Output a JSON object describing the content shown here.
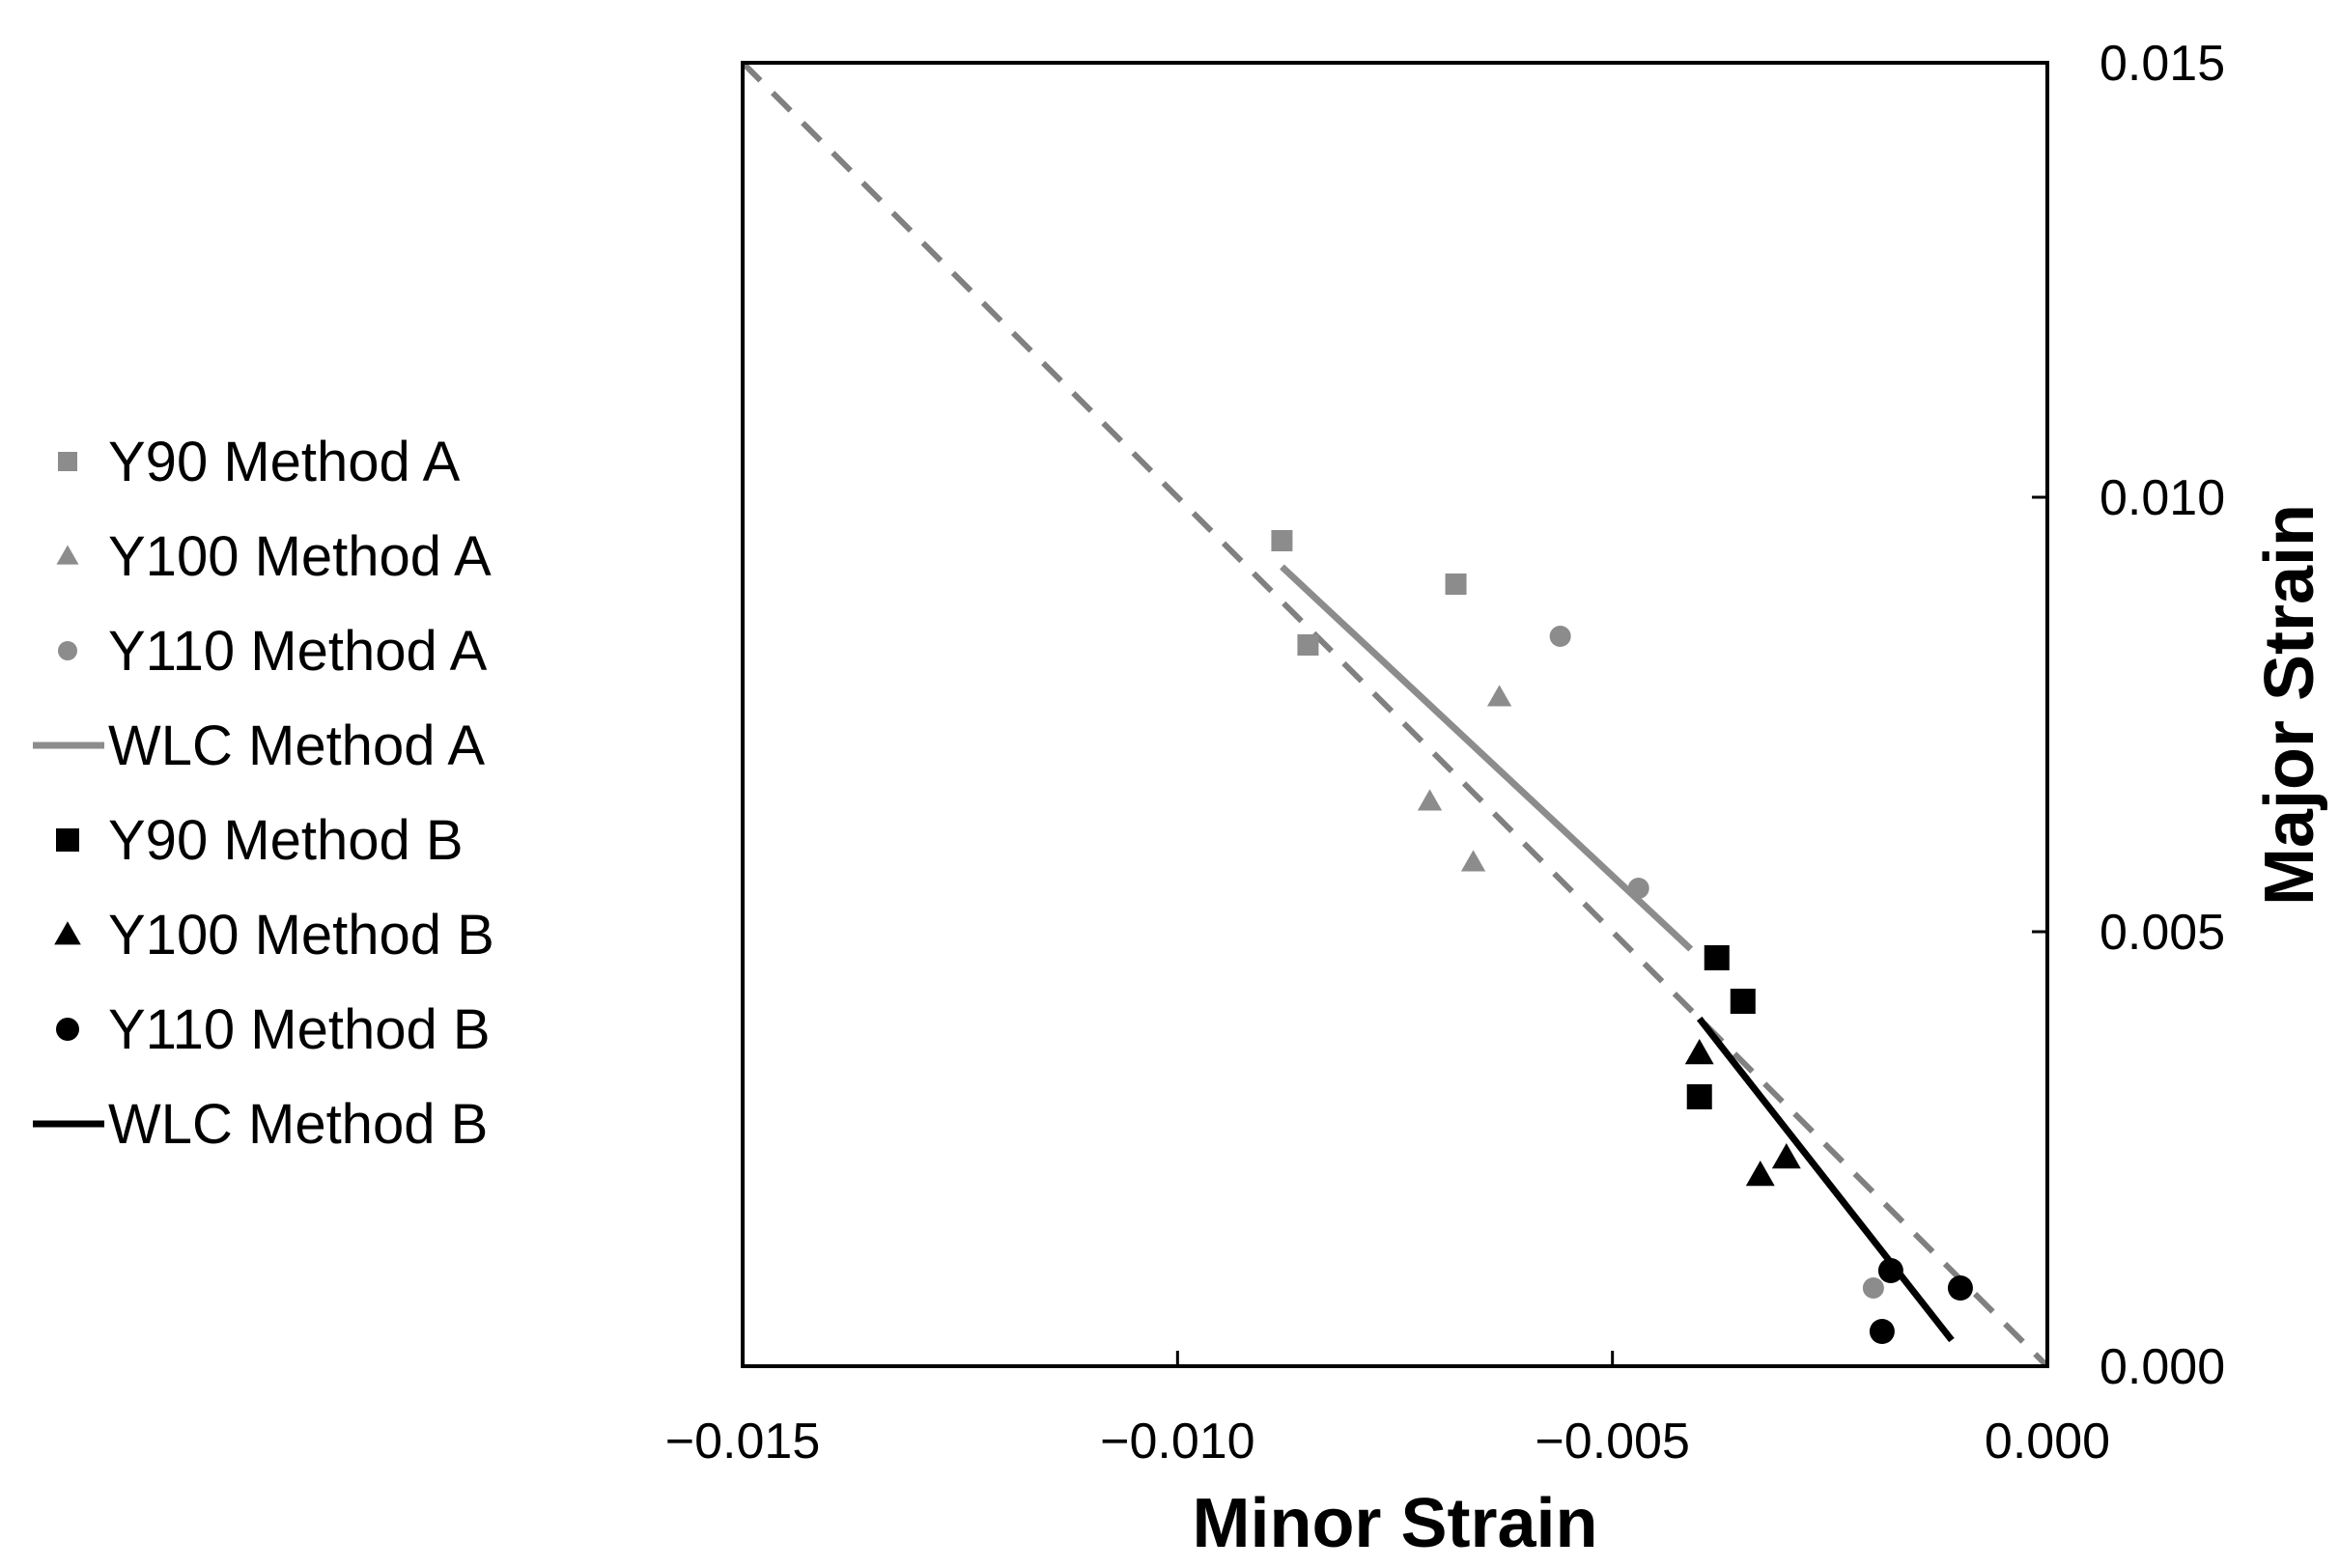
{
  "chart_data": {
    "type": "scatter",
    "xlabel": "Minor Strain",
    "ylabel": "Major Strain",
    "xlim": [
      -0.015,
      0.0
    ],
    "ylim": [
      0.0,
      0.015
    ],
    "x_ticks": [
      "−0.015",
      "−0.010",
      "−0.005",
      "0.000"
    ],
    "x_tick_values": [
      -0.015,
      -0.01,
      -0.005,
      0.0
    ],
    "y_ticks": [
      "0.000",
      "0.005",
      "0.010",
      "0.015"
    ],
    "y_tick_values": [
      0.0,
      0.005,
      0.01,
      0.015
    ],
    "y_axis_side": "right",
    "grid": false,
    "legend_position": "left-outside",
    "reference_line": {
      "style": "dashed",
      "color": "#808080",
      "points": [
        [
          -0.015,
          0.015
        ],
        [
          0.0,
          0.0
        ]
      ]
    },
    "series": [
      {
        "name": "Y90 Method A",
        "kind": "marker",
        "marker": "square",
        "size": "small",
        "color": "#8c8c8c",
        "points": [
          [
            -0.0088,
            0.0095
          ],
          [
            -0.0068,
            0.009
          ],
          [
            -0.0085,
            0.0083
          ]
        ]
      },
      {
        "name": "Y100 Method A",
        "kind": "marker",
        "marker": "triangle",
        "size": "small",
        "color": "#8c8c8c",
        "points": [
          [
            -0.0063,
            0.0077
          ],
          [
            -0.0071,
            0.0065
          ],
          [
            -0.0066,
            0.0058
          ]
        ]
      },
      {
        "name": "Y110 Method A",
        "kind": "marker",
        "marker": "circle",
        "size": "small",
        "color": "#8c8c8c",
        "points": [
          [
            -0.0056,
            0.0084
          ],
          [
            -0.0047,
            0.0055
          ],
          [
            -0.002,
            0.0009
          ]
        ]
      },
      {
        "name": "WLC Method A",
        "kind": "line",
        "color": "#8c8c8c",
        "points": [
          [
            -0.0088,
            0.0092
          ],
          [
            -0.0041,
            0.0048
          ]
        ]
      },
      {
        "name": "Y90 Method B",
        "kind": "marker",
        "marker": "square",
        "size": "large",
        "color": "#000000",
        "points": [
          [
            -0.0038,
            0.0047
          ],
          [
            -0.0035,
            0.0042
          ],
          [
            -0.004,
            0.0031
          ]
        ]
      },
      {
        "name": "Y100 Method B",
        "kind": "marker",
        "marker": "triangle",
        "size": "large",
        "color": "#000000",
        "points": [
          [
            -0.004,
            0.0036
          ],
          [
            -0.003,
            0.0024
          ],
          [
            -0.0033,
            0.0022
          ]
        ]
      },
      {
        "name": "Y110 Method B",
        "kind": "marker",
        "marker": "circle",
        "size": "large",
        "color": "#000000",
        "points": [
          [
            -0.0018,
            0.0011
          ],
          [
            -0.001,
            0.0009
          ],
          [
            -0.0019,
            0.0004
          ]
        ]
      },
      {
        "name": "WLC Method B",
        "kind": "line",
        "color": "#000000",
        "points": [
          [
            -0.004,
            0.004
          ],
          [
            -0.0011,
            0.0003
          ]
        ]
      }
    ]
  }
}
